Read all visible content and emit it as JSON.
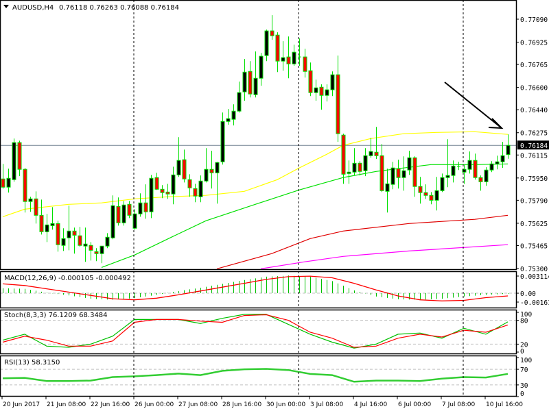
{
  "colors": {
    "bull_body": "#000000",
    "bear_body": "#ff0000",
    "candle_outline": "#00e000",
    "price_line": "#708090",
    "grid_dash": "#c0c0c0",
    "separator": "#000000"
  },
  "chart_data": [
    {
      "type": "candlestick",
      "panel": "main",
      "symbol_label": "AUDUSD,H4",
      "ohlc_label": "0.76118 0.76263 0.76088 0.76184",
      "ylim": [
        0.753,
        0.7709
      ],
      "yticks": [
        "0.77090",
        "0.76925",
        "0.76765",
        "0.76600",
        "0.76440",
        "0.76275",
        "0.76115",
        "0.75950",
        "0.75790",
        "0.75625",
        "0.75465",
        "0.75300"
      ],
      "current_price": 0.76184,
      "current_price_label": "0.76184",
      "session_separators": [
        24,
        54,
        84
      ],
      "candles_ohlc": [
        [
          0.75943,
          0.76051,
          0.75874,
          0.75884
        ],
        [
          0.75884,
          0.76017,
          0.75845,
          0.75948
        ],
        [
          0.75938,
          0.76233,
          0.75923,
          0.76204
        ],
        [
          0.76204,
          0.76218,
          0.75963,
          0.76012
        ],
        [
          0.76012,
          0.76022,
          0.75702,
          0.75781
        ],
        [
          0.75781,
          0.75815,
          0.75707,
          0.758
        ],
        [
          0.758,
          0.75854,
          0.75623,
          0.75682
        ],
        [
          0.75682,
          0.75795,
          0.75544,
          0.75564
        ],
        [
          0.75564,
          0.75692,
          0.7549,
          0.75613
        ],
        [
          0.75608,
          0.75741,
          0.75579,
          0.75623
        ],
        [
          0.75623,
          0.75643,
          0.75421,
          0.75471
        ],
        [
          0.75466,
          0.75589,
          0.75426,
          0.75515
        ],
        [
          0.7552,
          0.75751,
          0.75431,
          0.75569
        ],
        [
          0.75569,
          0.75594,
          0.75407,
          0.75539
        ],
        [
          0.75535,
          0.75599,
          0.75456,
          0.75466
        ],
        [
          0.75461,
          0.75594,
          0.75348,
          0.75476
        ],
        [
          0.75466,
          0.7549,
          0.75357,
          0.75431
        ],
        [
          0.75421,
          0.75446,
          0.75353,
          0.75407
        ],
        [
          0.75407,
          0.75461,
          0.75338,
          0.75461
        ],
        [
          0.75461,
          0.75554,
          0.75446,
          0.75525
        ],
        [
          0.7552,
          0.75825,
          0.7551,
          0.75751
        ],
        [
          0.75746,
          0.7581,
          0.75608,
          0.75628
        ],
        [
          0.75628,
          0.75785,
          0.75608,
          0.75756
        ],
        [
          0.75761,
          0.75785,
          0.75662,
          0.75682
        ],
        [
          0.75589,
          0.75726,
          0.75579,
          0.75692
        ],
        [
          0.75692,
          0.7584,
          0.75672,
          0.75771
        ],
        [
          0.75771,
          0.75904,
          0.75658,
          0.75707
        ],
        [
          0.75707,
          0.75972,
          0.75662,
          0.75948
        ],
        [
          0.75953,
          0.75987,
          0.75864,
          0.75869
        ],
        [
          0.75869,
          0.75899,
          0.75805,
          0.75845
        ],
        [
          0.75849,
          0.75908,
          0.758,
          0.75835
        ],
        [
          0.75835,
          0.76031,
          0.75761,
          0.75972
        ],
        [
          0.75972,
          0.76243,
          0.75958,
          0.76076
        ],
        [
          0.76081,
          0.76154,
          0.75918,
          0.75943
        ],
        [
          0.75938,
          0.75977,
          0.75815,
          0.75879
        ],
        [
          0.75874,
          0.75908,
          0.75776,
          0.7582
        ],
        [
          0.75815,
          0.75968,
          0.75776,
          0.75928
        ],
        [
          0.75928,
          0.76164,
          0.75918,
          0.76012
        ],
        [
          0.76012,
          0.76145,
          0.75874,
          0.75987
        ],
        [
          0.75987,
          0.76066,
          0.75766,
          0.76061
        ],
        [
          0.76066,
          0.7642,
          0.76046,
          0.76356
        ],
        [
          0.76356,
          0.76445,
          0.76332,
          0.76376
        ],
        [
          0.76371,
          0.76479,
          0.76327,
          0.7643
        ],
        [
          0.7643,
          0.76642,
          0.7642,
          0.76563
        ],
        [
          0.76568,
          0.76804,
          0.76504,
          0.7671
        ],
        [
          0.76715,
          0.76789,
          0.76528,
          0.76553
        ],
        [
          0.76548,
          0.76858,
          0.76528,
          0.76666
        ],
        [
          0.76666,
          0.76848,
          0.76612,
          0.76824
        ],
        [
          0.76829,
          0.77015,
          0.76789,
          0.77006
        ],
        [
          0.77006,
          0.77119,
          0.76942,
          0.76971
        ],
        [
          0.76976,
          0.76996,
          0.7671,
          0.76789
        ],
        [
          0.76789,
          0.76932,
          0.7672,
          0.76814
        ],
        [
          0.76819,
          0.76966,
          0.76666,
          0.76769
        ],
        [
          0.76769,
          0.76907,
          0.76755,
          0.76853
        ],
        [
          0.76819,
          0.76952,
          0.76755,
          0.76819
        ],
        [
          0.76819,
          0.76878,
          0.76671,
          0.76715
        ],
        [
          0.7672,
          0.76779,
          0.76538,
          0.76563
        ],
        [
          0.76563,
          0.76656,
          0.76504,
          0.76597
        ],
        [
          0.76602,
          0.76622,
          0.7644,
          0.76543
        ],
        [
          0.76543,
          0.76622,
          0.76499,
          0.76583
        ],
        [
          0.76583,
          0.76715,
          0.76538,
          0.76691
        ],
        [
          0.76691,
          0.76829,
          0.76209,
          0.76268
        ],
        [
          0.76258,
          0.76268,
          0.75908,
          0.75977
        ],
        [
          0.75982,
          0.76076,
          0.75908,
          0.75992
        ],
        [
          0.75992,
          0.76164,
          0.75968,
          0.76056
        ],
        [
          0.76056,
          0.76071,
          0.75968,
          0.75997
        ],
        [
          0.76002,
          0.76164,
          0.75963,
          0.7611
        ],
        [
          0.7611,
          0.76238,
          0.76095,
          0.7614
        ],
        [
          0.76135,
          0.76317,
          0.76086,
          0.7611
        ],
        [
          0.7611,
          0.76194,
          0.75849,
          0.75859
        ],
        [
          0.75854,
          0.76017,
          0.75702,
          0.75908
        ],
        [
          0.75904,
          0.76066,
          0.75869,
          0.76022
        ],
        [
          0.76017,
          0.76081,
          0.75874,
          0.75953
        ],
        [
          0.75953,
          0.76105,
          0.75859,
          0.76002
        ],
        [
          0.76007,
          0.76145,
          0.75972,
          0.76095
        ],
        [
          0.76095,
          0.76105,
          0.75815,
          0.75889
        ],
        [
          0.75889,
          0.75958,
          0.75766,
          0.75845
        ],
        [
          0.75845,
          0.75904,
          0.758,
          0.75825
        ],
        [
          0.75825,
          0.75849,
          0.75761,
          0.7579
        ],
        [
          0.7579,
          0.75958,
          0.75717,
          0.75859
        ],
        [
          0.75859,
          0.75982,
          0.75849,
          0.75953
        ],
        [
          0.75953,
          0.76228,
          0.75884,
          0.75968
        ],
        [
          0.75968,
          0.76076,
          0.75918,
          0.76036
        ],
        [
          0.76031,
          0.76066,
          0.76007,
          0.76031
        ],
        [
          0.75992,
          0.76046,
          0.75908,
          0.76012
        ],
        [
          0.76012,
          0.7614,
          0.75982,
          0.76076
        ],
        [
          0.76076,
          0.76125,
          0.75938,
          0.75953
        ],
        [
          0.75953,
          0.75968,
          0.75859,
          0.75923
        ],
        [
          0.75923,
          0.76027,
          0.75894,
          0.76007
        ],
        [
          0.76007,
          0.76071,
          0.75992,
          0.76051
        ],
        [
          0.76051,
          0.7611,
          0.76012,
          0.76066
        ],
        [
          0.76066,
          0.76209,
          0.76022,
          0.7611
        ],
        [
          0.76118,
          0.76263,
          0.76088,
          0.76184
        ]
      ],
      "moving_averages": [
        {
          "name": "ma-yellow",
          "color": "#ffff00",
          "points": [
            [
              0,
              0.75672
            ],
            [
              4,
              0.75726
            ],
            [
              12,
              0.75761
            ],
            [
              18,
              0.75771
            ],
            [
              24,
              0.758
            ],
            [
              30,
              0.75815
            ],
            [
              37,
              0.75825
            ],
            [
              44,
              0.75854
            ],
            [
              50,
              0.75938
            ],
            [
              54,
              0.76022
            ],
            [
              59,
              0.7612
            ],
            [
              62,
              0.76184
            ],
            [
              67,
              0.76233
            ],
            [
              73,
              0.76268
            ],
            [
              79,
              0.76277
            ],
            [
              86,
              0.76282
            ],
            [
              92,
              0.76263
            ]
          ]
        },
        {
          "name": "ma-green",
          "color": "#00e000",
          "points": [
            [
              18,
              0.75308
            ],
            [
              24,
              0.75397
            ],
            [
              31,
              0.7553
            ],
            [
              37,
              0.75643
            ],
            [
              46,
              0.75761
            ],
            [
              54,
              0.75864
            ],
            [
              62,
              0.75953
            ],
            [
              68,
              0.75997
            ],
            [
              72,
              0.76017
            ],
            [
              78,
              0.76046
            ],
            [
              86,
              0.76046
            ],
            [
              92,
              0.76051
            ]
          ]
        },
        {
          "name": "ma-red",
          "color": "#e00000",
          "points": [
            [
              39,
              0.75298
            ],
            [
              49,
              0.75407
            ],
            [
              56,
              0.75515
            ],
            [
              62,
              0.75569
            ],
            [
              74,
              0.75623
            ],
            [
              86,
              0.75653
            ],
            [
              92,
              0.75682
            ]
          ]
        },
        {
          "name": "ma-magenta",
          "color": "#ff00ff",
          "points": [
            [
              47,
              0.75298
            ],
            [
              55,
              0.75348
            ],
            [
              62,
              0.75387
            ],
            [
              74,
              0.75426
            ],
            [
              92,
              0.75471
            ]
          ]
        }
      ]
    },
    {
      "type": "bar",
      "panel": "macd",
      "label": "MACD(12,26,9) -0.000105 -0.000492",
      "ylim": [
        -0.001614,
        0.003114
      ],
      "yticks": [
        "0.003114",
        "0.00",
        "-0.001614"
      ],
      "sample_step": 4,
      "histogram": [
        0.0009,
        0.0008,
        0.0001,
        -0.0004,
        -0.001,
        -0.0012,
        -0.0009,
        -0.0003,
        0.0004,
        0.001,
        0.0017,
        0.0024,
        0.003,
        0.0032,
        0.003,
        0.0022,
        0.0005,
        -0.0006,
        -0.0011,
        -0.0012,
        -0.001,
        -0.0006,
        -0.0003,
        -0.000105
      ],
      "signal": [
        0.0017,
        0.0014,
        0.0008,
        0.0002,
        -0.0004,
        -0.001,
        -0.0012,
        -0.0009,
        -0.0003,
        0.0004,
        0.0011,
        0.0018,
        0.0025,
        0.003,
        0.0031,
        0.0028,
        0.0018,
        0.0006,
        -0.0005,
        -0.0012,
        -0.0014,
        -0.0013,
        -0.0008,
        -0.000492
      ],
      "histogram_color": "#00c000",
      "signal_color": "#ff0000"
    },
    {
      "type": "line",
      "panel": "stoch",
      "label": "Stoch(8,3,3) 76.1209 68.3484",
      "ylim": [
        0,
        100
      ],
      "yticks": [
        "100",
        "80",
        "20",
        "0"
      ],
      "levels": [
        80,
        20
      ],
      "sample_step": 4,
      "series": [
        {
          "name": "main",
          "color": "#00c000",
          "values": [
            30,
            45,
            15,
            12,
            20,
            40,
            82,
            82,
            82,
            72,
            85,
            95,
            95,
            70,
            45,
            25,
            10,
            20,
            45,
            48,
            35,
            60,
            45,
            76.12
          ]
        },
        {
          "name": "signal",
          "color": "#ff0000",
          "values": [
            25,
            40,
            30,
            15,
            15,
            28,
            75,
            82,
            82,
            78,
            75,
            92,
            94,
            80,
            50,
            35,
            12,
            15,
            35,
            45,
            38,
            55,
            50,
            68.35
          ]
        }
      ]
    },
    {
      "type": "line",
      "panel": "rsi",
      "label": "RSI(13) 58.3150",
      "ylim": [
        0,
        100
      ],
      "yticks": [
        "100",
        "70",
        "30",
        "0"
      ],
      "levels": [
        70,
        30
      ],
      "sample_step": 4,
      "series": [
        {
          "name": "rsi",
          "color": "#32cd32",
          "values": [
            47,
            48,
            40,
            40,
            41,
            50,
            52,
            55,
            59,
            55,
            66,
            70,
            71,
            68,
            58,
            55,
            38,
            41,
            41,
            40,
            46,
            50,
            49,
            58.32
          ]
        }
      ]
    }
  ],
  "xaxis": {
    "labels": [
      {
        "text": "20 Jun 2017",
        "candle": 0
      },
      {
        "text": "21 Jun 08:00",
        "candle": 8
      },
      {
        "text": "22 Jun 16:00",
        "candle": 16
      },
      {
        "text": "26 Jun 00:00",
        "candle": 24
      },
      {
        "text": "27 Jun 08:00",
        "candle": 32
      },
      {
        "text": "28 Jun 16:00",
        "candle": 40
      },
      {
        "text": "30 Jun 00:00",
        "candle": 48
      },
      {
        "text": "3 Jul 08:00",
        "candle": 56
      },
      {
        "text": "4 Jul 16:00",
        "candle": 64
      },
      {
        "text": "6 Jul 00:00",
        "candle": 72
      },
      {
        "text": "7 Jul 08:00",
        "candle": 80
      },
      {
        "text": "10 Jul 16:00",
        "candle": 88
      }
    ]
  }
}
